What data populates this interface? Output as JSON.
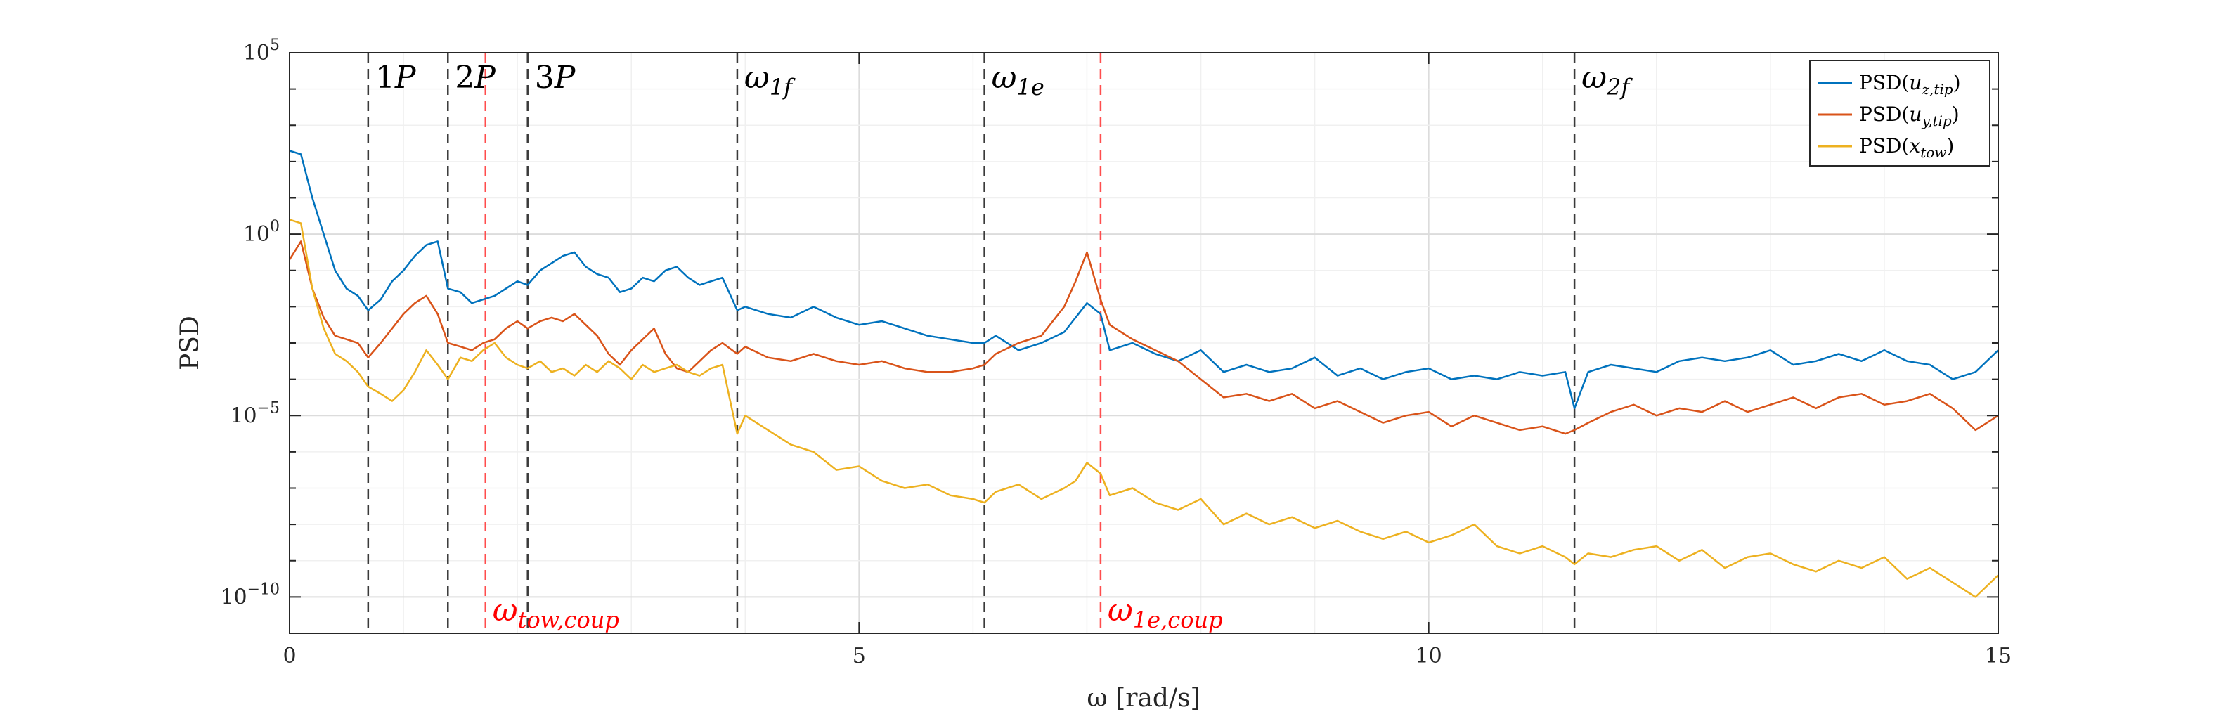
{
  "chart_data": {
    "type": "line",
    "title": "",
    "xlabel": "ω [rad/s]",
    "ylabel": "PSD",
    "xlim": [
      0,
      15
    ],
    "ylim": [
      -11,
      5
    ],
    "y_scale": "log10",
    "grid": true,
    "legend_position": "top-right",
    "x_ticks": [
      {
        "value": 0,
        "label": "0"
      },
      {
        "value": 5,
        "label": "5"
      },
      {
        "value": 10,
        "label": "10"
      },
      {
        "value": 15,
        "label": "15"
      }
    ],
    "y_ticks": [
      {
        "exp": 5,
        "label": "10",
        "sup": "5"
      },
      {
        "exp": 0,
        "label": "10",
        "sup": "0"
      },
      {
        "exp": -5,
        "label": "10",
        "sup": "−5"
      },
      {
        "exp": -10,
        "label": "10",
        "sup": "−10"
      }
    ],
    "vertical_lines": [
      {
        "x": 0.69,
        "label": "1P",
        "color": "#3a3a3a",
        "label_position": "top"
      },
      {
        "x": 1.39,
        "label": "2P",
        "color": "#3a3a3a",
        "label_position": "top"
      },
      {
        "x": 1.72,
        "label": "ωtow,coup",
        "color": "#ff4d4d",
        "label_position": "bottom"
      },
      {
        "x": 2.09,
        "label": "3P",
        "color": "#3a3a3a",
        "label_position": "top"
      },
      {
        "x": 3.93,
        "label": "ω1f",
        "color": "#3a3a3a",
        "label_position": "top"
      },
      {
        "x": 6.1,
        "label": "ω1e",
        "color": "#3a3a3a",
        "label_position": "top"
      },
      {
        "x": 7.12,
        "label": "ω1e,coup",
        "color": "#ff4d4d",
        "label_position": "bottom"
      },
      {
        "x": 11.28,
        "label": "ω2f",
        "color": "#3a3a3a",
        "label_position": "top"
      }
    ],
    "series": [
      {
        "name": "PSD(uz,tip)",
        "color": "#0072BD",
        "x": [
          0,
          0.1,
          0.2,
          0.3,
          0.4,
          0.5,
          0.6,
          0.69,
          0.8,
          0.9,
          1.0,
          1.1,
          1.2,
          1.3,
          1.39,
          1.5,
          1.6,
          1.7,
          1.8,
          1.9,
          2.0,
          2.09,
          2.2,
          2.3,
          2.4,
          2.5,
          2.6,
          2.7,
          2.8,
          2.9,
          3.0,
          3.1,
          3.2,
          3.3,
          3.4,
          3.5,
          3.6,
          3.7,
          3.8,
          3.93,
          4.0,
          4.2,
          4.4,
          4.6,
          4.8,
          5.0,
          5.2,
          5.4,
          5.6,
          5.8,
          6.0,
          6.1,
          6.2,
          6.4,
          6.6,
          6.8,
          6.9,
          7.0,
          7.12,
          7.2,
          7.4,
          7.6,
          7.8,
          8.0,
          8.2,
          8.4,
          8.6,
          8.8,
          9.0,
          9.2,
          9.4,
          9.6,
          9.8,
          10.0,
          10.2,
          10.4,
          10.6,
          10.8,
          11.0,
          11.2,
          11.28,
          11.4,
          11.6,
          11.8,
          12.0,
          12.2,
          12.4,
          12.6,
          12.8,
          13.0,
          13.2,
          13.4,
          13.6,
          13.8,
          14.0,
          14.2,
          14.4,
          14.6,
          14.8,
          15.0
        ],
        "y": [
          2.3,
          2.2,
          1.0,
          0.0,
          -1.0,
          -1.5,
          -1.7,
          -2.1,
          -1.8,
          -1.3,
          -1.0,
          -0.6,
          -0.3,
          -0.2,
          -1.5,
          -1.6,
          -1.9,
          -1.8,
          -1.7,
          -1.5,
          -1.3,
          -1.4,
          -1.0,
          -0.8,
          -0.6,
          -0.5,
          -0.9,
          -1.1,
          -1.2,
          -1.6,
          -1.5,
          -1.2,
          -1.3,
          -1.0,
          -0.9,
          -1.2,
          -1.4,
          -1.3,
          -1.2,
          -2.1,
          -2.0,
          -2.2,
          -2.3,
          -2.0,
          -2.3,
          -2.5,
          -2.4,
          -2.6,
          -2.8,
          -2.9,
          -3.0,
          -3.0,
          -2.8,
          -3.2,
          -3.0,
          -2.7,
          -2.3,
          -1.9,
          -2.2,
          -3.2,
          -3.0,
          -3.3,
          -3.5,
          -3.2,
          -3.8,
          -3.6,
          -3.8,
          -3.7,
          -3.4,
          -3.9,
          -3.7,
          -4.0,
          -3.8,
          -3.7,
          -4.0,
          -3.9,
          -4.0,
          -3.8,
          -3.9,
          -3.8,
          -4.8,
          -3.8,
          -3.6,
          -3.7,
          -3.8,
          -3.5,
          -3.4,
          -3.5,
          -3.4,
          -3.2,
          -3.6,
          -3.5,
          -3.3,
          -3.5,
          -3.2,
          -3.5,
          -3.6,
          -4.0,
          -3.8,
          -3.2
        ]
      },
      {
        "name": "PSD(uy,tip)",
        "color": "#D95319",
        "x": [
          0,
          0.1,
          0.2,
          0.3,
          0.4,
          0.5,
          0.6,
          0.69,
          0.8,
          0.9,
          1.0,
          1.1,
          1.2,
          1.3,
          1.39,
          1.5,
          1.6,
          1.7,
          1.8,
          1.9,
          2.0,
          2.09,
          2.2,
          2.3,
          2.4,
          2.5,
          2.6,
          2.7,
          2.8,
          2.9,
          3.0,
          3.1,
          3.2,
          3.3,
          3.4,
          3.5,
          3.6,
          3.7,
          3.8,
          3.93,
          4.0,
          4.2,
          4.4,
          4.6,
          4.8,
          5.0,
          5.2,
          5.4,
          5.6,
          5.8,
          6.0,
          6.1,
          6.2,
          6.4,
          6.6,
          6.8,
          6.9,
          7.0,
          7.12,
          7.2,
          7.4,
          7.6,
          7.8,
          8.0,
          8.2,
          8.4,
          8.6,
          8.8,
          9.0,
          9.2,
          9.4,
          9.6,
          9.8,
          10.0,
          10.2,
          10.4,
          10.6,
          10.8,
          11.0,
          11.2,
          11.28,
          11.4,
          11.6,
          11.8,
          12.0,
          12.2,
          12.4,
          12.6,
          12.8,
          13.0,
          13.2,
          13.4,
          13.6,
          13.8,
          14.0,
          14.2,
          14.4,
          14.6,
          14.8,
          15.0
        ],
        "y": [
          -0.7,
          -0.2,
          -1.5,
          -2.3,
          -2.8,
          -2.9,
          -3.0,
          -3.4,
          -3.0,
          -2.6,
          -2.2,
          -1.9,
          -1.7,
          -2.2,
          -3.0,
          -3.1,
          -3.2,
          -3.0,
          -2.9,
          -2.6,
          -2.4,
          -2.6,
          -2.4,
          -2.3,
          -2.4,
          -2.2,
          -2.5,
          -2.8,
          -3.3,
          -3.6,
          -3.2,
          -2.9,
          -2.6,
          -3.3,
          -3.7,
          -3.8,
          -3.5,
          -3.2,
          -3.0,
          -3.3,
          -3.1,
          -3.4,
          -3.5,
          -3.3,
          -3.5,
          -3.6,
          -3.5,
          -3.7,
          -3.8,
          -3.8,
          -3.7,
          -3.6,
          -3.3,
          -3.0,
          -2.8,
          -2.0,
          -1.3,
          -0.5,
          -1.8,
          -2.5,
          -2.9,
          -3.2,
          -3.5,
          -4.0,
          -4.5,
          -4.4,
          -4.6,
          -4.4,
          -4.8,
          -4.6,
          -4.9,
          -5.2,
          -5.0,
          -4.9,
          -5.3,
          -5.0,
          -5.2,
          -5.4,
          -5.3,
          -5.5,
          -5.4,
          -5.2,
          -4.9,
          -4.7,
          -5.0,
          -4.8,
          -4.9,
          -4.6,
          -4.9,
          -4.7,
          -4.5,
          -4.8,
          -4.5,
          -4.4,
          -4.7,
          -4.6,
          -4.4,
          -4.8,
          -5.4,
          -5.0
        ]
      },
      {
        "name": "PSD(xtow)",
        "color": "#EDB120",
        "x": [
          0,
          0.1,
          0.2,
          0.3,
          0.4,
          0.5,
          0.6,
          0.69,
          0.8,
          0.9,
          1.0,
          1.1,
          1.2,
          1.3,
          1.39,
          1.5,
          1.6,
          1.7,
          1.8,
          1.9,
          2.0,
          2.09,
          2.2,
          2.3,
          2.4,
          2.5,
          2.6,
          2.7,
          2.8,
          2.9,
          3.0,
          3.1,
          3.2,
          3.3,
          3.4,
          3.5,
          3.6,
          3.7,
          3.8,
          3.93,
          4.0,
          4.2,
          4.4,
          4.6,
          4.8,
          5.0,
          5.2,
          5.4,
          5.6,
          5.8,
          6.0,
          6.1,
          6.2,
          6.4,
          6.6,
          6.8,
          6.9,
          7.0,
          7.12,
          7.2,
          7.4,
          7.6,
          7.8,
          8.0,
          8.2,
          8.4,
          8.6,
          8.8,
          9.0,
          9.2,
          9.4,
          9.6,
          9.8,
          10.0,
          10.2,
          10.4,
          10.6,
          10.8,
          11.0,
          11.2,
          11.28,
          11.4,
          11.6,
          11.8,
          12.0,
          12.2,
          12.4,
          12.6,
          12.8,
          13.0,
          13.2,
          13.4,
          13.6,
          13.8,
          14.0,
          14.2,
          14.4,
          14.6,
          14.8,
          15.0
        ],
        "y": [
          0.4,
          0.3,
          -1.5,
          -2.6,
          -3.3,
          -3.5,
          -3.8,
          -4.2,
          -4.4,
          -4.6,
          -4.3,
          -3.8,
          -3.2,
          -3.6,
          -4.0,
          -3.4,
          -3.5,
          -3.2,
          -3.0,
          -3.4,
          -3.6,
          -3.7,
          -3.5,
          -3.8,
          -3.7,
          -3.9,
          -3.6,
          -3.8,
          -3.5,
          -3.7,
          -4.0,
          -3.6,
          -3.8,
          -3.7,
          -3.6,
          -3.8,
          -3.9,
          -3.7,
          -3.6,
          -5.5,
          -5.0,
          -5.4,
          -5.8,
          -6.0,
          -6.5,
          -6.4,
          -6.8,
          -7.0,
          -6.9,
          -7.2,
          -7.3,
          -7.4,
          -7.1,
          -6.9,
          -7.3,
          -7.0,
          -6.8,
          -6.3,
          -6.6,
          -7.2,
          -7.0,
          -7.4,
          -7.6,
          -7.3,
          -8.0,
          -7.7,
          -8.0,
          -7.8,
          -8.1,
          -7.9,
          -8.2,
          -8.4,
          -8.2,
          -8.5,
          -8.3,
          -8.0,
          -8.6,
          -8.8,
          -8.6,
          -8.9,
          -9.1,
          -8.8,
          -8.9,
          -8.7,
          -8.6,
          -9.0,
          -8.7,
          -9.2,
          -8.9,
          -8.8,
          -9.1,
          -9.3,
          -9.0,
          -9.2,
          -8.9,
          -9.5,
          -9.2,
          -9.6,
          -10.0,
          -9.4
        ]
      }
    ]
  }
}
